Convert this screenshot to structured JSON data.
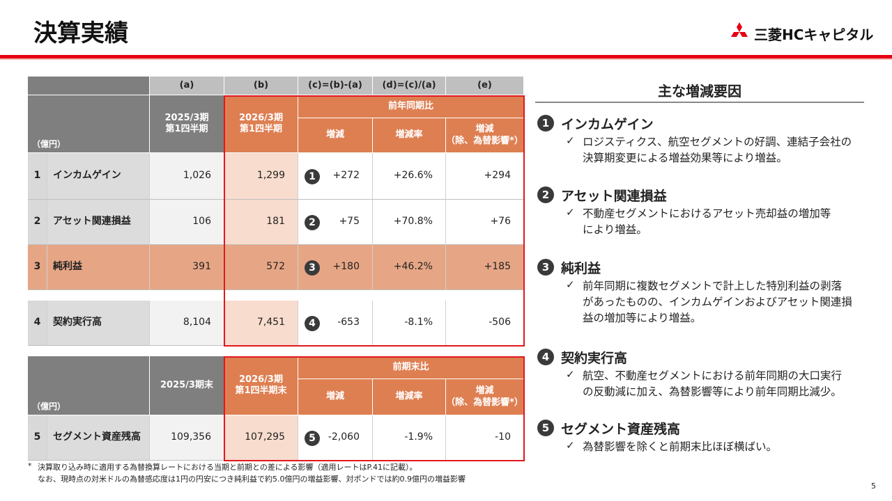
{
  "header": {
    "title": "決算実績",
    "logo": "三菱HCキャピタル"
  },
  "table1": {
    "column_letters": [
      "(a)",
      "(b)",
      "(c)=(b)-(a)",
      "(d)=(c)/(a)",
      "(e)"
    ],
    "unit": "（億円）",
    "period_a": [
      "2025/3期",
      "第1四半期"
    ],
    "period_b": [
      "2026/3期",
      "第1四半期"
    ],
    "group": "前年同期比",
    "sub_headers": [
      [
        "増減"
      ],
      [
        "増減率"
      ],
      [
        "増減",
        "（除、為替影響*）"
      ]
    ],
    "rows": [
      {
        "no": "1",
        "label": "インカムゲイン",
        "a": "1,026",
        "b": "1,299",
        "marker": "1",
        "c": "+272",
        "d": "+26.6%",
        "e": "+294"
      },
      {
        "no": "2",
        "label": "アセット関連損益",
        "a": "106",
        "b": "181",
        "marker": "2",
        "c": "+75",
        "d": "+70.8%",
        "e": "+76"
      },
      {
        "no": "3",
        "label": "純利益",
        "a": "391",
        "b": "572",
        "marker": "3",
        "c": "+180",
        "d": "+46.2%",
        "e": "+185"
      },
      {
        "no": "4",
        "label": "契約実行高",
        "a": "8,104",
        "b": "7,451",
        "marker": "4",
        "c": "-653",
        "d": "-8.1%",
        "e": "-506"
      }
    ]
  },
  "table2": {
    "unit": "（億円）",
    "period_a": [
      "2025/3期末"
    ],
    "period_b": [
      "2026/3期",
      "第1四半期末"
    ],
    "group": "前期末比",
    "sub_headers": [
      [
        "増減"
      ],
      [
        "増減率"
      ],
      [
        "増減",
        "（除、為替影響*）"
      ]
    ],
    "rows": [
      {
        "no": "5",
        "label": "セグメント資産残高",
        "a": "109,356",
        "b": "107,295",
        "marker": "5",
        "c": "-2,060",
        "d": "-1.9%",
        "e": "-10"
      }
    ]
  },
  "factors": {
    "title": "主な増減要因",
    "bullet": "✓",
    "items": [
      {
        "no": "1",
        "heading": "インカムゲイン",
        "lines": [
          "ロジスティクス、航空セグメントの好調、連結子会社の",
          "決算期変更による増益効果等により増益。"
        ]
      },
      {
        "no": "2",
        "heading": "アセット関連損益",
        "lines": [
          "不動産セグメントにおけるアセット売却益の増加等",
          "により増益。"
        ]
      },
      {
        "no": "3",
        "heading": "純利益",
        "lines": [
          "前年同期に複数セグメントで計上した特別利益の剥落",
          "があったものの、インカムゲインおよびアセット関連損",
          "益の増加等により増益。"
        ]
      },
      {
        "no": "4",
        "heading": "契約実行高",
        "lines": [
          "航空、不動産セグメントにおける前年同期の大口実行",
          "の反動減に加え、為替影響等により前年同期比減少。"
        ]
      },
      {
        "no": "5",
        "heading": "セグメント資産残高",
        "lines": [
          "為替影響を除くと前期末比ほぼ横ばい。"
        ]
      }
    ]
  },
  "footnote": {
    "mark": "*",
    "lines": [
      "決算取り込み時に適用する為替換算レートにおける当期と前期との差による影響（適用レートはP.41に記載）。",
      "なお、現時点の対米ドルの為替感応度は1円の円安につき純利益で約5.0億円の増益影響、対ポンドでは約0.9億円の増益影響"
    ]
  },
  "page_number": "5"
}
